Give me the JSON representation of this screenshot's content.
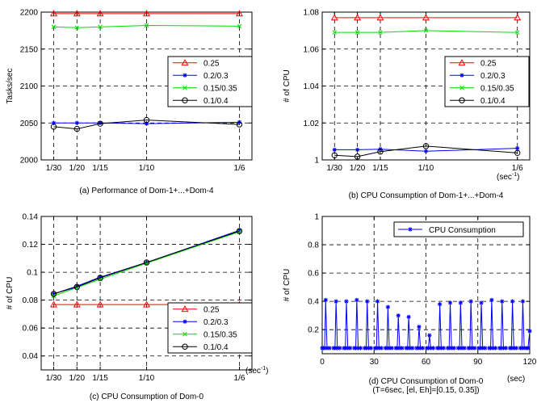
{
  "colors": {
    "red": "#ff0000",
    "blue": "#0000ff",
    "green": "#00dd00",
    "black": "#000000"
  },
  "chart_data": [
    {
      "type": "line",
      "caption": "(a) Performance of Dom-1+...+Dom-4",
      "xlabel": "",
      "ylabel": "Tasks/sec",
      "x": [
        0.0333,
        0.05,
        0.0667,
        0.1,
        0.1667
      ],
      "xticks": [
        0.0333,
        0.05,
        0.0667,
        0.1,
        0.1667
      ],
      "xticklabels": [
        "1/30",
        "1/20",
        "1/15",
        "1/10",
        "1/6"
      ],
      "ylim": [
        2000,
        2200
      ],
      "yticks": [
        2000,
        2050,
        2100,
        2150,
        2200
      ],
      "yticklabels": [
        "2000",
        "2050",
        "2100",
        "2150",
        "2200"
      ],
      "legend_position": "right",
      "series": [
        {
          "name": "0.25",
          "color": "red",
          "marker": "triangle",
          "values": [
            2198,
            2198,
            2198,
            2198,
            2198
          ]
        },
        {
          "name": "0.2/0.3",
          "color": "blue",
          "marker": "star",
          "values": [
            2050,
            2050,
            2050,
            2049,
            2051
          ]
        },
        {
          "name": "0.15/0.35",
          "color": "green",
          "marker": "x",
          "values": [
            2180,
            2179,
            2180,
            2182,
            2181
          ]
        },
        {
          "name": "0.1/0.4",
          "color": "black",
          "marker": "circle",
          "values": [
            2045,
            2042,
            2049,
            2054,
            2048
          ]
        }
      ]
    },
    {
      "type": "line",
      "caption": "(b) CPU Consumption of Dom-1+...+Dom-4",
      "xlabel": "(sec",
      "xlabel_sup": "-1",
      "xlabel_close": ")",
      "ylabel": "# of CPU",
      "x": [
        0.0333,
        0.05,
        0.0667,
        0.1,
        0.1667
      ],
      "xticks": [
        0.0333,
        0.05,
        0.0667,
        0.1,
        0.1667
      ],
      "xticklabels": [
        "1/30",
        "1/20",
        "1/15",
        "1/10",
        "1/6"
      ],
      "ylim": [
        1.0,
        1.08
      ],
      "yticks": [
        1.0,
        1.02,
        1.04,
        1.06,
        1.08
      ],
      "yticklabels": [
        "1",
        "1.02",
        "1.04",
        "1.06",
        "1.08"
      ],
      "legend_position": "right",
      "series": [
        {
          "name": "0.25",
          "color": "red",
          "marker": "triangle",
          "values": [
            1.077,
            1.077,
            1.077,
            1.077,
            1.077
          ]
        },
        {
          "name": "0.2/0.3",
          "color": "blue",
          "marker": "star",
          "values": [
            1.0055,
            1.0055,
            1.0058,
            1.0047,
            1.0063
          ]
        },
        {
          "name": "0.15/0.35",
          "color": "green",
          "marker": "x",
          "values": [
            1.069,
            1.069,
            1.069,
            1.07,
            1.069
          ]
        },
        {
          "name": "0.1/0.4",
          "color": "black",
          "marker": "circle",
          "values": [
            1.0025,
            1.0018,
            1.0045,
            1.0075,
            1.0038
          ]
        }
      ]
    },
    {
      "type": "line",
      "caption": "(c) CPU Consumption of Dom-0",
      "xlabel": "(sec",
      "xlabel_sup": "-1",
      "xlabel_close": ")",
      "ylabel": "# of CPU",
      "x": [
        0.0333,
        0.05,
        0.0667,
        0.1,
        0.1667
      ],
      "xticks": [
        0.0333,
        0.05,
        0.0667,
        0.1,
        0.1667
      ],
      "xticklabels": [
        "1/30",
        "1/20",
        "1/15",
        "1/10",
        "1/6"
      ],
      "ylim": [
        0.03,
        0.14
      ],
      "yticks": [
        0.04,
        0.06,
        0.08,
        0.1,
        0.12,
        0.14
      ],
      "yticklabels": [
        "0.04",
        "0.06",
        "0.08",
        "0.1",
        "0.12",
        "0.14"
      ],
      "legend_position": "bottom-right",
      "series": [
        {
          "name": "0.25",
          "color": "red",
          "marker": "triangle",
          "values": [
            0.0768,
            0.0768,
            0.0768,
            0.0768,
            0.0768
          ]
        },
        {
          "name": "0.2/0.3",
          "color": "blue",
          "marker": "star",
          "values": [
            0.0845,
            0.09,
            0.0965,
            0.107,
            0.13
          ]
        },
        {
          "name": "0.15/0.35",
          "color": "green",
          "marker": "x",
          "values": [
            0.083,
            0.089,
            0.095,
            0.1065,
            0.129
          ]
        },
        {
          "name": "0.1/0.4",
          "color": "black",
          "marker": "circle",
          "values": [
            0.0845,
            0.0895,
            0.096,
            0.107,
            0.1295
          ]
        }
      ]
    },
    {
      "type": "line",
      "caption": "(d) CPU Consumption of Dom-0",
      "caption2": "(T=6sec, [el, Eh]=[0.15, 0.35])",
      "xlabel": "(sec)",
      "ylabel": "# of CPU",
      "xlim": [
        0,
        120
      ],
      "xticks": [
        0,
        30,
        60,
        90,
        120
      ],
      "xticklabels": [
        "0",
        "30",
        "60",
        "90",
        "120"
      ],
      "ylim": [
        0.03,
        1.0
      ],
      "yticks": [
        0.2,
        0.4,
        0.6,
        0.8,
        1
      ],
      "yticklabels": [
        "0.2",
        "0.4",
        "0.6",
        "0.8",
        "1"
      ],
      "legend_position": "top-right",
      "series": [
        {
          "name": "CPU Consumption",
          "color": "blue",
          "marker": "star",
          "peaks_x": [
            2,
            8,
            14,
            20,
            26,
            32,
            38,
            44,
            50,
            56,
            62,
            68,
            74,
            80,
            86,
            92,
            98,
            104,
            110,
            116
          ],
          "peaks_y": [
            0.41,
            0.4,
            0.4,
            0.41,
            0.4,
            0.4,
            0.36,
            0.3,
            0.29,
            0.22,
            0.16,
            0.38,
            0.39,
            0.39,
            0.4,
            0.39,
            0.41,
            0.4,
            0.4,
            0.4
          ],
          "baseline": 0.07,
          "end_x": 120,
          "end_y": 0.19
        }
      ]
    }
  ]
}
